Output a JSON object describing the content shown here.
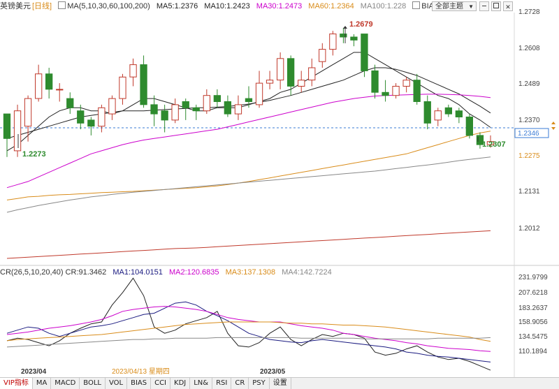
{
  "header": {
    "symbol": "英镑美元",
    "period": "[日线]",
    "ma_label": "MA(5,10,30,60,100,200)",
    "ma5": "MA5:1.2376",
    "ma10": "MA10:1.2423",
    "ma30": "MA30:1.2473",
    "ma60": "MA60:1.2364",
    "ma100": "MA100:1.228",
    "bias": "BIAS",
    "theme_select": "全部主题",
    "theme_arrow": "▼",
    "colors": {
      "ma5": "#222222",
      "ma10": "#222222",
      "ma30": "#cc00cc",
      "ma60": "#d98c1a",
      "ma100": "#888888"
    }
  },
  "indicator_header": {
    "label": "CR(26,5,10,20,40) CR:91.3462",
    "ma1": "MA1:104.0151",
    "ma2": "MA2:120.6835",
    "ma3": "MA3:137.1308",
    "ma4": "MA4:142.7224",
    "colors": {
      "cr": "#222222",
      "ma1": "#1a1a80",
      "ma2": "#cc00cc",
      "ma3": "#d98c1a",
      "ma4": "#888888"
    }
  },
  "price_axis": [
    "1.2728",
    "1.2608",
    "1.2489",
    "1.2370",
    "1.2275",
    "1.2131",
    "1.2012"
  ],
  "current_price": "1.2346",
  "cr_axis": [
    "231.9799",
    "207.6218",
    "183.2637",
    "158.9056",
    "134.5475",
    "110.1894"
  ],
  "time_axis": {
    "left": "2023/04",
    "crosshair": "2023/04/13 星期四",
    "right": "2023/05"
  },
  "annotations": {
    "high": "1.2679",
    "low_left": "1.2273",
    "low_right": "1.2307"
  },
  "tabs": [
    "VIP指标",
    "MA",
    "MACD",
    "BOLL",
    "VOL",
    "BIAS",
    "CCI",
    "KDJ",
    "LN&",
    "RSI",
    "CR",
    "PSY",
    "设置"
  ],
  "chart_data": {
    "type": "candlestick",
    "price_range": [
      1.195,
      1.2745
    ],
    "up_color": "#ffffff",
    "down_color": "#2e8b2e",
    "candles": [
      [
        1.242,
        1.234,
        1.228,
        1.242
      ],
      [
        1.23,
        1.243,
        1.228,
        1.245
      ],
      [
        1.238,
        1.247,
        1.233,
        1.248
      ],
      [
        1.247,
        1.255,
        1.246,
        1.258
      ],
      [
        1.255,
        1.25,
        1.247,
        1.257
      ],
      [
        1.25,
        1.25,
        1.246,
        1.252
      ],
      [
        1.247,
        1.244,
        1.242,
        1.249
      ],
      [
        1.243,
        1.239,
        1.237,
        1.245
      ],
      [
        1.24,
        1.238,
        1.235,
        1.241
      ],
      [
        1.238,
        1.244,
        1.236,
        1.245
      ],
      [
        1.242,
        1.247,
        1.24,
        1.248
      ],
      [
        1.247,
        1.254,
        1.245,
        1.255
      ],
      [
        1.254,
        1.258,
        1.251,
        1.26
      ],
      [
        1.258,
        1.245,
        1.244,
        1.261
      ],
      [
        1.245,
        1.242,
        1.238,
        1.248
      ],
      [
        1.243,
        1.24,
        1.236,
        1.245
      ],
      [
        1.24,
        1.245,
        1.239,
        1.247
      ],
      [
        1.246,
        1.244,
        1.24,
        1.247
      ],
      [
        1.244,
        1.243,
        1.24,
        1.245
      ],
      [
        1.243,
        1.248,
        1.242,
        1.25
      ],
      [
        1.248,
        1.246,
        1.244,
        1.25
      ],
      [
        1.246,
        1.242,
        1.241,
        1.248
      ],
      [
        1.242,
        1.245,
        1.24,
        1.248
      ],
      [
        1.247,
        1.246,
        1.244,
        1.251
      ],
      [
        1.245,
        1.252,
        1.244,
        1.256
      ],
      [
        1.252,
        1.253,
        1.25,
        1.256
      ],
      [
        1.253,
        1.26,
        1.25,
        1.262
      ],
      [
        1.26,
        1.251,
        1.248,
        1.261
      ],
      [
        1.251,
        1.253,
        1.249,
        1.256
      ],
      [
        1.253,
        1.257,
        1.251,
        1.26
      ],
      [
        1.259,
        1.263,
        1.257,
        1.265
      ],
      [
        1.263,
        1.268,
        1.261,
        1.269
      ],
      [
        1.268,
        1.267,
        1.265,
        1.27
      ],
      [
        1.267,
        1.266,
        1.264,
        1.2679
      ],
      [
        1.268,
        1.256,
        1.254,
        1.2679
      ],
      [
        1.256,
        1.249,
        1.247,
        1.258
      ],
      [
        1.249,
        1.248,
        1.246,
        1.253
      ],
      [
        1.248,
        1.251,
        1.247,
        1.252
      ],
      [
        1.251,
        1.253,
        1.249,
        1.254
      ],
      [
        1.253,
        1.246,
        1.245,
        1.255
      ],
      [
        1.246,
        1.239,
        1.237,
        1.248
      ],
      [
        1.24,
        1.243,
        1.238,
        1.244
      ],
      [
        1.244,
        1.242,
        1.241,
        1.245
      ],
      [
        1.243,
        1.241,
        1.239,
        1.244
      ],
      [
        1.241,
        1.235,
        1.234,
        1.242
      ],
      [
        1.235,
        1.232,
        1.2307,
        1.236
      ],
      [
        1.232,
        1.233,
        1.231,
        1.235
      ]
    ],
    "ma_lines": [
      {
        "name": "MA5",
        "color": "#222222",
        "values": [
          1.23,
          1.232,
          1.235,
          1.238,
          1.241,
          1.243,
          1.244,
          1.244,
          1.243,
          1.243,
          1.242,
          1.243,
          1.245,
          1.247,
          1.247,
          1.246,
          1.245,
          1.244,
          1.243,
          1.243,
          1.244,
          1.244,
          1.244,
          1.245,
          1.246,
          1.247,
          1.249,
          1.25,
          1.252,
          1.254,
          1.256,
          1.258,
          1.26,
          1.262,
          1.262,
          1.26,
          1.258,
          1.256,
          1.254,
          1.252,
          1.25,
          1.248,
          1.247,
          1.245,
          1.242,
          1.24,
          1.2376
        ]
      },
      {
        "name": "MA10",
        "color": "#222222",
        "values": [
          1.234,
          1.235,
          1.236,
          1.237,
          1.238,
          1.239,
          1.24,
          1.241,
          1.2415,
          1.242,
          1.2425,
          1.243,
          1.243,
          1.243,
          1.2432,
          1.2434,
          1.2436,
          1.2438,
          1.244,
          1.244,
          1.2442,
          1.2444,
          1.2448,
          1.2452,
          1.2458,
          1.2464,
          1.2472,
          1.248,
          1.249,
          1.25,
          1.251,
          1.252,
          1.253,
          1.2545,
          1.256,
          1.257,
          1.257,
          1.2565,
          1.2555,
          1.2545,
          1.253,
          1.2515,
          1.25,
          1.2485,
          1.2465,
          1.2445,
          1.2423
        ]
      },
      {
        "name": "MA30",
        "color": "#cc00cc",
        "values": [
          1.218,
          1.219,
          1.22,
          1.2215,
          1.223,
          1.2245,
          1.226,
          1.2275,
          1.229,
          1.23,
          1.231,
          1.232,
          1.2328,
          1.2335,
          1.234,
          1.2345,
          1.235,
          1.2355,
          1.236,
          1.2365,
          1.237,
          1.2378,
          1.2386,
          1.2394,
          1.2402,
          1.241,
          1.2418,
          1.2426,
          1.2434,
          1.2442,
          1.245,
          1.2458,
          1.2464,
          1.247,
          1.2474,
          1.2478,
          1.248,
          1.2481,
          1.2482,
          1.2483,
          1.2484,
          1.2484,
          1.2483,
          1.2482,
          1.248,
          1.2477,
          1.2473
        ]
      },
      {
        "name": "MA60",
        "color": "#d98c1a",
        "values": [
          1.214,
          1.2145,
          1.215,
          1.2152,
          1.2155,
          1.2157,
          1.2158,
          1.216,
          1.2162,
          1.2164,
          1.2165,
          1.2167,
          1.2168,
          1.217,
          1.2172,
          1.2174,
          1.2176,
          1.2178,
          1.218,
          1.2183,
          1.2186,
          1.219,
          1.2195,
          1.22,
          1.2206,
          1.2212,
          1.2218,
          1.2224,
          1.223,
          1.2236,
          1.2242,
          1.2248,
          1.2254,
          1.226,
          1.2266,
          1.2272,
          1.2278,
          1.2284,
          1.229,
          1.23,
          1.231,
          1.232,
          1.233,
          1.234,
          1.235,
          1.2358,
          1.2364
        ]
      },
      {
        "name": "MA100",
        "color": "#888888",
        "values": [
          1.21,
          1.2108,
          1.2115,
          1.2122,
          1.2128,
          1.2134,
          1.214,
          1.2145,
          1.215,
          1.2154,
          1.2158,
          1.2162,
          1.2165,
          1.2168,
          1.2171,
          1.2174,
          1.2177,
          1.218,
          1.2183,
          1.2186,
          1.2189,
          1.2192,
          1.2195,
          1.2198,
          1.2201,
          1.2204,
          1.2207,
          1.221,
          1.2213,
          1.2216,
          1.2219,
          1.2222,
          1.2225,
          1.2228,
          1.2231,
          1.2234,
          1.2238,
          1.2242,
          1.2246,
          1.225,
          1.2254,
          1.2258,
          1.2263,
          1.2268,
          1.2272,
          1.2276,
          1.228
        ]
      },
      {
        "name": "MA200",
        "color": "#c0392b",
        "values": [
          1.195,
          1.1952,
          1.1954,
          1.1956,
          1.1958,
          1.196,
          1.1962,
          1.1964,
          1.1966,
          1.1968,
          1.197,
          1.1972,
          1.1974,
          1.1976,
          1.1978,
          1.198,
          1.1982,
          1.1983,
          1.1984,
          1.1986,
          1.1988,
          1.199,
          1.1992,
          1.1994,
          1.1996,
          1.1998,
          1.2,
          1.2002,
          1.2004,
          1.2006,
          1.2008,
          1.201,
          1.2012,
          1.2014,
          1.2016,
          1.2018,
          1.202,
          1.2022,
          1.2024,
          1.2026,
          1.2028,
          1.203,
          1.2032,
          1.2034,
          1.2036,
          1.2038,
          1.204
        ]
      }
    ],
    "cr_range": [
      100,
      245
    ],
    "cr_lines": [
      {
        "name": "CR",
        "color": "#222222",
        "values": [
          138,
          142,
          140,
          135,
          130,
          138,
          150,
          158,
          165,
          168,
          195,
          215,
          238,
          210,
          160,
          150,
          155,
          165,
          170,
          175,
          185,
          150,
          130,
          128,
          135,
          150,
          160,
          140,
          130,
          140,
          148,
          145,
          150,
          148,
          142,
          120,
          115,
          118,
          125,
          130,
          120,
          112,
          108,
          110,
          105,
          98,
          91
        ]
      },
      {
        "name": "MA1",
        "color": "#1a1a80",
        "values": [
          150,
          155,
          160,
          158,
          150,
          145,
          150,
          155,
          160,
          162,
          165,
          170,
          175,
          180,
          182,
          190,
          198,
          200,
          195,
          185,
          178,
          170,
          160,
          150,
          145,
          140,
          138,
          136,
          135,
          138,
          140,
          138,
          136,
          134,
          132,
          130,
          128,
          125,
          120,
          118,
          115,
          113,
          112,
          110,
          108,
          106,
          104
        ]
      },
      {
        "name": "MA2",
        "color": "#cc00cc",
        "values": [
          148,
          150,
          152,
          155,
          158,
          160,
          162,
          165,
          168,
          172,
          178,
          185,
          188,
          190,
          192,
          193,
          192,
          190,
          188,
          185,
          180,
          175,
          172,
          170,
          168,
          168,
          168,
          165,
          162,
          160,
          158,
          155,
          150,
          148,
          145,
          142,
          140,
          138,
          135,
          133,
          130,
          128,
          126,
          125,
          124,
          122,
          121
        ]
      },
      {
        "name": "MA3",
        "color": "#d98c1a",
        "values": [
          138,
          140,
          141,
          142,
          143,
          144,
          145,
          146,
          147,
          148,
          150,
          152,
          154,
          156,
          158,
          160,
          162,
          164,
          165,
          166,
          167,
          168,
          168,
          168,
          168,
          168,
          167,
          166,
          166,
          165,
          165,
          164,
          163,
          163,
          162,
          161,
          160,
          158,
          156,
          154,
          152,
          150,
          148,
          146,
          144,
          140,
          137
        ]
      },
      {
        "name": "MA4",
        "color": "#888888",
        "values": [
          128,
          129,
          130,
          131,
          132,
          133,
          134,
          135,
          136,
          137,
          138,
          139,
          140,
          140,
          141,
          141,
          142,
          142,
          142,
          142,
          143,
          143,
          143,
          143,
          143,
          143,
          143,
          143,
          142,
          142,
          142,
          142,
          142,
          142,
          141,
          141,
          141,
          141,
          141,
          141,
          141,
          142,
          142,
          142,
          142,
          142,
          143
        ]
      }
    ]
  }
}
